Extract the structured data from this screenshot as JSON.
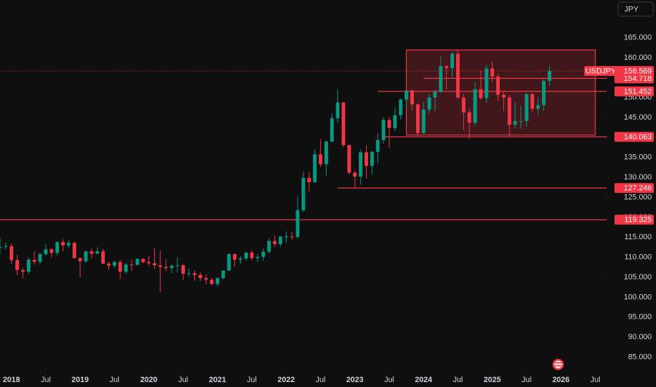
{
  "chart_data": {
    "type": "candlestick",
    "symbol": "USDJPY",
    "currency": "JPY",
    "x": [
      "2017-11",
      "2017-12",
      "2018-01",
      "2018-02",
      "2018-03",
      "2018-04",
      "2018-05",
      "2018-06",
      "2018-07",
      "2018-08",
      "2018-09",
      "2018-10",
      "2018-11",
      "2018-12",
      "2019-01",
      "2019-02",
      "2019-03",
      "2019-04",
      "2019-05",
      "2019-06",
      "2019-07",
      "2019-08",
      "2019-09",
      "2019-10",
      "2019-11",
      "2019-12",
      "2020-01",
      "2020-02",
      "2020-03",
      "2020-04",
      "2020-05",
      "2020-06",
      "2020-07",
      "2020-08",
      "2020-09",
      "2020-10",
      "2020-11",
      "2020-12",
      "2021-01",
      "2021-02",
      "2021-03",
      "2021-04",
      "2021-05",
      "2021-06",
      "2021-07",
      "2021-08",
      "2021-09",
      "2021-10",
      "2021-11",
      "2021-12",
      "2022-01",
      "2022-02",
      "2022-03",
      "2022-04",
      "2022-05",
      "2022-06",
      "2022-07",
      "2022-08",
      "2022-09",
      "2022-10",
      "2022-11",
      "2022-12",
      "2023-01",
      "2023-02",
      "2023-03",
      "2023-04",
      "2023-05",
      "2023-06",
      "2023-07",
      "2023-08",
      "2023-09",
      "2023-10",
      "2023-11",
      "2023-12",
      "2024-01",
      "2024-02",
      "2024-03",
      "2024-04",
      "2024-05",
      "2024-06",
      "2024-07",
      "2024-08",
      "2024-09",
      "2024-10",
      "2024-11",
      "2024-12",
      "2025-01",
      "2025-02",
      "2025-03",
      "2025-04",
      "2025-05",
      "2025-06",
      "2025-07",
      "2025-08",
      "2025-09",
      "2025-10",
      "2025-11"
    ],
    "open": [
      112.5,
      112.5,
      112.7,
      109.2,
      106.7,
      106.3,
      109.3,
      108.8,
      110.7,
      111.9,
      111.0,
      113.7,
      112.9,
      113.5,
      109.7,
      108.9,
      111.4,
      110.8,
      111.4,
      108.3,
      107.8,
      108.7,
      106.3,
      108.1,
      108.0,
      109.5,
      108.7,
      108.4,
      107.9,
      107.5,
      107.2,
      107.8,
      107.9,
      105.8,
      105.9,
      105.5,
      104.7,
      104.3,
      103.2,
      104.7,
      106.6,
      110.7,
      109.3,
      109.6,
      111.1,
      109.7,
      110.0,
      111.3,
      114.0,
      113.2,
      115.1,
      115.1,
      115.0,
      121.7,
      129.8,
      128.7,
      135.7,
      133.2,
      138.9,
      144.7,
      148.7,
      138.0,
      131.1,
      130.1,
      136.2,
      132.8,
      136.3,
      139.3,
      144.3,
      142.3,
      145.5,
      149.4,
      151.7,
      148.2,
      141.0,
      146.9,
      149.9,
      151.3,
      157.8,
      157.3,
      160.9,
      149.9,
      146.2,
      143.6,
      152.0,
      149.8,
      157.2,
      155.2,
      150.6,
      149.9,
      143.1,
      144.0,
      144.0,
      150.8,
      147.1,
      148.0,
      154.1
    ],
    "high": [
      114.7,
      113.7,
      113.4,
      110.5,
      107.3,
      109.9,
      111.4,
      111.0,
      113.2,
      112.2,
      113.9,
      114.5,
      114.2,
      113.8,
      109.9,
      111.5,
      112.1,
      112.4,
      112.0,
      108.8,
      109.0,
      109.3,
      108.5,
      109.3,
      109.7,
      109.7,
      110.3,
      112.2,
      111.7,
      109.4,
      108.1,
      109.9,
      108.2,
      107.1,
      106.6,
      106.1,
      105.7,
      104.8,
      104.9,
      106.7,
      110.9,
      110.9,
      110.2,
      111.1,
      111.7,
      110.8,
      112.1,
      114.7,
      115.5,
      115.2,
      116.4,
      116.3,
      125.1,
      131.3,
      131.3,
      137.0,
      139.4,
      139.1,
      145.9,
      151.9,
      148.8,
      138.2,
      131.6,
      136.9,
      137.9,
      136.6,
      140.9,
      145.0,
      145.1,
      147.4,
      149.7,
      151.7,
      151.9,
      148.3,
      148.8,
      150.9,
      151.97,
      160.2,
      157.99,
      161.3,
      161.95,
      150.9,
      147.2,
      153.9,
      156.7,
      158.1,
      158.9,
      155.9,
      151.3,
      150.5,
      148.6,
      148.0,
      150.9,
      150.9,
      149.9,
      154.5,
      157.9
    ],
    "low": [
      110.8,
      111.9,
      108.3,
      105.5,
      104.6,
      105.7,
      108.1,
      108.1,
      110.3,
      109.8,
      110.4,
      111.4,
      112.3,
      109.6,
      104.8,
      108.5,
      109.7,
      110.8,
      108.3,
      106.8,
      107.2,
      104.5,
      105.7,
      106.5,
      107.9,
      108.4,
      107.7,
      107.0,
      101.2,
      106.4,
      105.9,
      106.1,
      104.2,
      105.1,
      104.0,
      104.0,
      103.2,
      102.9,
      102.6,
      104.4,
      106.4,
      107.5,
      108.3,
      109.1,
      109.1,
      108.7,
      109.1,
      110.8,
      112.5,
      112.6,
      113.5,
      114.2,
      114.7,
      121.3,
      126.4,
      128.6,
      132.5,
      130.4,
      138.8,
      143.5,
      137.5,
      130.6,
      127.2,
      128.1,
      129.6,
      130.6,
      133.5,
      138.4,
      137.2,
      141.5,
      144.4,
      147.3,
      146.7,
      140.3,
      140.8,
      145.9,
      146.5,
      151.0,
      151.9,
      154.6,
      149.6,
      141.7,
      139.6,
      142.9,
      149.4,
      148.6,
      153.7,
      149.1,
      146.5,
      139.9,
      142.1,
      142.1,
      142.7,
      146.2,
      145.5,
      146.6,
      152.8
    ],
    "close": [
      112.5,
      112.7,
      109.2,
      106.7,
      106.3,
      109.3,
      108.8,
      110.7,
      111.9,
      111.0,
      113.7,
      112.9,
      113.5,
      109.7,
      108.9,
      111.4,
      110.8,
      111.4,
      108.3,
      107.8,
      108.7,
      106.3,
      108.1,
      108.0,
      109.5,
      108.7,
      108.4,
      107.9,
      107.5,
      107.2,
      107.8,
      107.9,
      105.8,
      105.9,
      105.5,
      104.7,
      104.3,
      103.2,
      104.7,
      106.6,
      110.7,
      109.3,
      109.6,
      111.1,
      109.7,
      110.0,
      111.3,
      114.0,
      113.2,
      115.1,
      115.1,
      115.0,
      121.7,
      129.8,
      128.7,
      135.7,
      133.2,
      138.9,
      144.7,
      148.7,
      138.0,
      131.1,
      130.1,
      136.2,
      132.8,
      136.3,
      139.3,
      144.3,
      142.3,
      145.5,
      149.4,
      151.7,
      148.2,
      141.0,
      146.9,
      149.9,
      151.3,
      157.8,
      157.3,
      160.9,
      149.9,
      146.2,
      143.6,
      152.0,
      149.8,
      157.2,
      155.2,
      150.6,
      149.9,
      143.1,
      144.0,
      144.0,
      150.8,
      147.1,
      148.0,
      154.1,
      156.569
    ],
    "up_color": "#089981",
    "down_color": "#f23645",
    "level_color": "#f23645",
    "last_price": 156.569,
    "levels": [
      {
        "value": 154.718,
        "start": "2024-01"
      },
      {
        "value": 151.452,
        "start": "2023-05"
      },
      {
        "value": 140.063,
        "start": "2023-06"
      },
      {
        "value": 127.246,
        "start": "2022-10"
      },
      {
        "value": 119.325,
        "start": "2017-11"
      }
    ],
    "zone": {
      "x": [
        "2023-10",
        "2026-07"
      ],
      "y": [
        140.51,
        161.83
      ]
    },
    "xlim": [
      "2017-11",
      "2026-09"
    ],
    "ylim": [
      80.95,
      174.34
    ],
    "yticks": [
      {
        "value": 85,
        "label": "85.000"
      },
      {
        "value": 90,
        "label": "90.000"
      },
      {
        "value": 95,
        "label": "95.000"
      },
      {
        "value": 100,
        "label": "100.000"
      },
      {
        "value": 105,
        "label": "105.000"
      },
      {
        "value": 110,
        "label": "110.000"
      },
      {
        "value": 115,
        "label": "115.000"
      },
      {
        "value": 120,
        "label": "120.000"
      },
      {
        "value": 125,
        "label": "125.000"
      },
      {
        "value": 130,
        "label": "130.000"
      },
      {
        "value": 135,
        "label": "135.000"
      },
      {
        "value": 140,
        "label": "140.000"
      },
      {
        "value": 145,
        "label": "145.000"
      },
      {
        "value": 150,
        "label": "150.000"
      },
      {
        "value": 155,
        "label": "155.000"
      },
      {
        "value": 160,
        "label": "160.000"
      },
      {
        "value": 165,
        "label": "165.000"
      }
    ],
    "xticks": [
      {
        "value": "2018-01",
        "label": "2018"
      },
      {
        "value": "2018-07",
        "label": "Jul"
      },
      {
        "value": "2019-01",
        "label": "2019"
      },
      {
        "value": "2019-07",
        "label": "Jul"
      },
      {
        "value": "2020-01",
        "label": "2020"
      },
      {
        "value": "2020-07",
        "label": "Jul"
      },
      {
        "value": "2021-01",
        "label": "2021"
      },
      {
        "value": "2021-07",
        "label": "Jul"
      },
      {
        "value": "2022-01",
        "label": "2022"
      },
      {
        "value": "2022-07",
        "label": "Jul"
      },
      {
        "value": "2023-01",
        "label": "2023"
      },
      {
        "value": "2023-07",
        "label": "Jul"
      },
      {
        "value": "2024-01",
        "label": "2024"
      },
      {
        "value": "2024-07",
        "label": "Jul"
      },
      {
        "value": "2025-01",
        "label": "2025"
      },
      {
        "value": "2025-07",
        "label": "Jul"
      },
      {
        "value": "2026-01",
        "label": "2026"
      },
      {
        "value": "2026-07",
        "label": "Jul"
      }
    ]
  }
}
